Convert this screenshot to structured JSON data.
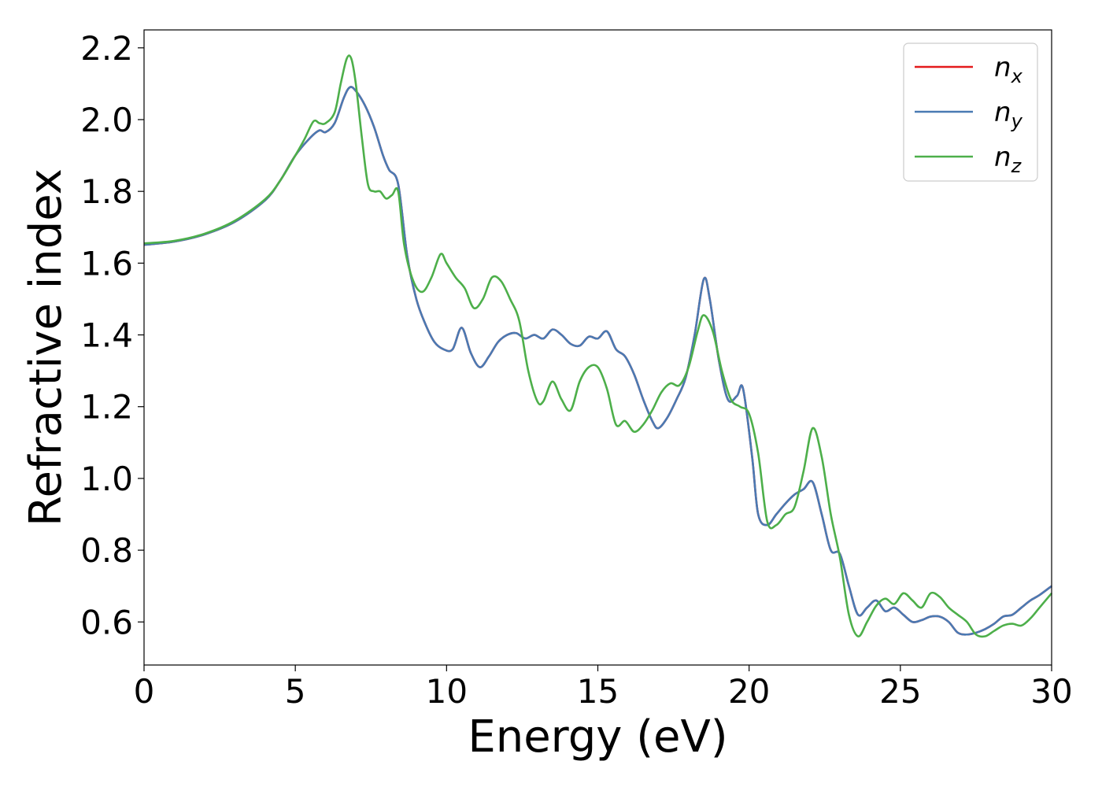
{
  "chart_data": {
    "type": "line",
    "title": "",
    "xlabel": "Energy (eV)",
    "ylabel": "Refractive index",
    "xlim": [
      0,
      30
    ],
    "ylim": [
      0.48,
      2.25
    ],
    "xticks": [
      0,
      5,
      10,
      15,
      20,
      25,
      30
    ],
    "xtick_labels": [
      "0",
      "5",
      "10",
      "15",
      "20",
      "25",
      "30"
    ],
    "yticks": [
      0.6,
      0.8,
      1.0,
      1.2,
      1.4,
      1.6,
      1.8,
      2.0,
      2.2
    ],
    "ytick_labels": [
      "0.6",
      "0.8",
      "1.0",
      "1.2",
      "1.4",
      "1.6",
      "1.8",
      "2.0",
      "2.2"
    ],
    "grid": false,
    "legend_position": "top-right",
    "series": [
      {
        "name": "n_x",
        "legend_base": "n",
        "legend_sub": "x",
        "color": "#e41a1c",
        "x": [
          0,
          1,
          2,
          3,
          4,
          4.5,
          5,
          5.5,
          5.8,
          6.0,
          6.3,
          6.6,
          6.8,
          7.0,
          7.3,
          7.6,
          7.9,
          8.1,
          8.4,
          8.7,
          9.0,
          9.3,
          9.6,
          9.9,
          10.2,
          10.5,
          10.8,
          11.1,
          11.4,
          11.7,
          12.0,
          12.3,
          12.6,
          12.9,
          13.2,
          13.5,
          13.8,
          14.1,
          14.4,
          14.7,
          15.0,
          15.3,
          15.6,
          15.9,
          16.2,
          16.5,
          16.8,
          17.0,
          17.3,
          17.6,
          17.9,
          18.2,
          18.5,
          18.7,
          19.0,
          19.3,
          19.6,
          19.8,
          20.1,
          20.3,
          20.6,
          20.9,
          21.2,
          21.5,
          21.8,
          22.1,
          22.4,
          22.7,
          23.0,
          23.3,
          23.6,
          23.9,
          24.2,
          24.5,
          24.8,
          25.1,
          25.4,
          25.7,
          26.0,
          26.3,
          26.6,
          26.9,
          27.2,
          27.5,
          27.8,
          28.1,
          28.4,
          28.7,
          29.0,
          29.3,
          29.6,
          30.0
        ],
        "y": [
          1.651,
          1.66,
          1.68,
          1.715,
          1.775,
          1.83,
          1.9,
          1.95,
          1.97,
          1.965,
          1.99,
          2.06,
          2.09,
          2.08,
          2.04,
          1.98,
          1.9,
          1.86,
          1.82,
          1.62,
          1.5,
          1.43,
          1.38,
          1.36,
          1.36,
          1.42,
          1.35,
          1.31,
          1.34,
          1.38,
          1.4,
          1.405,
          1.39,
          1.4,
          1.39,
          1.415,
          1.4,
          1.375,
          1.37,
          1.395,
          1.39,
          1.41,
          1.36,
          1.34,
          1.29,
          1.22,
          1.16,
          1.14,
          1.17,
          1.22,
          1.28,
          1.4,
          1.555,
          1.5,
          1.33,
          1.22,
          1.23,
          1.25,
          1.06,
          0.9,
          0.87,
          0.9,
          0.93,
          0.955,
          0.97,
          0.99,
          0.9,
          0.8,
          0.79,
          0.7,
          0.62,
          0.64,
          0.66,
          0.63,
          0.64,
          0.62,
          0.6,
          0.605,
          0.615,
          0.615,
          0.6,
          0.57,
          0.565,
          0.57,
          0.58,
          0.595,
          0.615,
          0.62,
          0.64,
          0.66,
          0.675,
          0.7
        ]
      },
      {
        "name": "n_y",
        "legend_base": "n",
        "legend_sub": "y",
        "color": "#4a7ab3",
        "x": [
          0,
          1,
          2,
          3,
          4,
          4.5,
          5,
          5.5,
          5.8,
          6.0,
          6.3,
          6.6,
          6.8,
          7.0,
          7.3,
          7.6,
          7.9,
          8.1,
          8.4,
          8.7,
          9.0,
          9.3,
          9.6,
          9.9,
          10.2,
          10.5,
          10.8,
          11.1,
          11.4,
          11.7,
          12.0,
          12.3,
          12.6,
          12.9,
          13.2,
          13.5,
          13.8,
          14.1,
          14.4,
          14.7,
          15.0,
          15.3,
          15.6,
          15.9,
          16.2,
          16.5,
          16.8,
          17.0,
          17.3,
          17.6,
          17.9,
          18.2,
          18.5,
          18.7,
          19.0,
          19.3,
          19.6,
          19.8,
          20.1,
          20.3,
          20.6,
          20.9,
          21.2,
          21.5,
          21.8,
          22.1,
          22.4,
          22.7,
          23.0,
          23.3,
          23.6,
          23.9,
          24.2,
          24.5,
          24.8,
          25.1,
          25.4,
          25.7,
          26.0,
          26.3,
          26.6,
          26.9,
          27.2,
          27.5,
          27.8,
          28.1,
          28.4,
          28.7,
          29.0,
          29.3,
          29.6,
          30.0
        ],
        "y": [
          1.651,
          1.66,
          1.68,
          1.715,
          1.775,
          1.83,
          1.9,
          1.95,
          1.97,
          1.965,
          1.99,
          2.06,
          2.09,
          2.08,
          2.04,
          1.98,
          1.9,
          1.86,
          1.82,
          1.62,
          1.5,
          1.43,
          1.38,
          1.36,
          1.36,
          1.42,
          1.35,
          1.31,
          1.34,
          1.38,
          1.4,
          1.405,
          1.39,
          1.4,
          1.39,
          1.415,
          1.4,
          1.375,
          1.37,
          1.395,
          1.39,
          1.41,
          1.36,
          1.34,
          1.29,
          1.22,
          1.16,
          1.14,
          1.17,
          1.22,
          1.28,
          1.4,
          1.555,
          1.5,
          1.33,
          1.22,
          1.23,
          1.25,
          1.06,
          0.9,
          0.87,
          0.9,
          0.93,
          0.955,
          0.97,
          0.99,
          0.9,
          0.8,
          0.79,
          0.7,
          0.62,
          0.64,
          0.66,
          0.63,
          0.64,
          0.62,
          0.6,
          0.605,
          0.615,
          0.615,
          0.6,
          0.57,
          0.565,
          0.57,
          0.58,
          0.595,
          0.615,
          0.62,
          0.64,
          0.66,
          0.675,
          0.7
        ]
      },
      {
        "name": "n_z",
        "legend_base": "n",
        "legend_sub": "z",
        "color": "#4daf4a",
        "x": [
          0,
          1,
          2,
          3,
          4,
          4.5,
          5,
          5.3,
          5.6,
          5.8,
          6.0,
          6.3,
          6.5,
          6.7,
          6.85,
          7.0,
          7.2,
          7.4,
          7.6,
          7.8,
          8.0,
          8.2,
          8.4,
          8.6,
          8.9,
          9.2,
          9.5,
          9.8,
          10.0,
          10.3,
          10.6,
          10.9,
          11.2,
          11.5,
          11.8,
          12.1,
          12.4,
          12.7,
          13.0,
          13.2,
          13.5,
          13.8,
          14.1,
          14.4,
          14.7,
          15.0,
          15.3,
          15.6,
          15.9,
          16.2,
          16.5,
          16.8,
          17.1,
          17.4,
          17.7,
          18.0,
          18.3,
          18.5,
          18.8,
          19.1,
          19.4,
          19.7,
          20.0,
          20.3,
          20.6,
          20.9,
          21.2,
          21.5,
          21.8,
          22.1,
          22.4,
          22.7,
          23.0,
          23.3,
          23.6,
          23.9,
          24.2,
          24.5,
          24.8,
          25.1,
          25.4,
          25.7,
          26.0,
          26.3,
          26.6,
          26.9,
          27.2,
          27.5,
          27.8,
          28.1,
          28.4,
          28.7,
          29.0,
          29.3,
          29.6,
          30.0
        ],
        "y": [
          1.655,
          1.662,
          1.682,
          1.718,
          1.778,
          1.83,
          1.9,
          1.945,
          1.995,
          1.99,
          1.99,
          2.02,
          2.1,
          2.17,
          2.17,
          2.1,
          1.95,
          1.82,
          1.8,
          1.8,
          1.78,
          1.79,
          1.8,
          1.65,
          1.55,
          1.52,
          1.56,
          1.625,
          1.6,
          1.56,
          1.53,
          1.475,
          1.5,
          1.56,
          1.55,
          1.5,
          1.44,
          1.3,
          1.215,
          1.215,
          1.27,
          1.22,
          1.19,
          1.27,
          1.31,
          1.31,
          1.25,
          1.15,
          1.16,
          1.13,
          1.15,
          1.19,
          1.24,
          1.265,
          1.26,
          1.31,
          1.41,
          1.455,
          1.41,
          1.3,
          1.22,
          1.2,
          1.18,
          1.07,
          0.88,
          0.87,
          0.9,
          0.92,
          1.02,
          1.14,
          1.06,
          0.9,
          0.78,
          0.62,
          0.56,
          0.6,
          0.645,
          0.665,
          0.65,
          0.68,
          0.66,
          0.64,
          0.68,
          0.67,
          0.64,
          0.62,
          0.6,
          0.565,
          0.56,
          0.575,
          0.59,
          0.595,
          0.59,
          0.61,
          0.64,
          0.68
        ]
      }
    ]
  }
}
